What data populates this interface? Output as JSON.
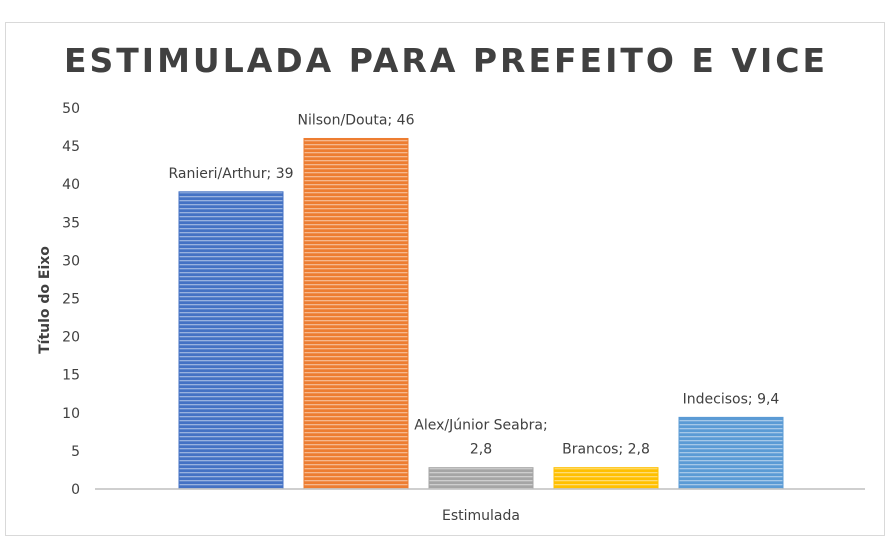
{
  "chart_data": {
    "type": "bar",
    "title": "ESTIMULADA PARA PREFEITO E VICE",
    "xlabel": "Estimulada",
    "ylabel": "Título do Eixo",
    "ylim": [
      0,
      50
    ],
    "yticks": [
      "0",
      "5",
      "10",
      "15",
      "20",
      "25",
      "30",
      "35",
      "40",
      "45",
      "50"
    ],
    "grid": false,
    "legend": "none",
    "series": [
      {
        "name": "Ranieri/Arthur",
        "value": 39,
        "label": "Ranieri/Arthur; 39",
        "color": "#4472C4"
      },
      {
        "name": "Nilson/Douta",
        "value": 46,
        "label": "Nilson/Douta; 46",
        "color": "#ED7D31"
      },
      {
        "name": "Alex/Júnior Seabra",
        "value": 2.8,
        "label": [
          "Alex/Júnior Seabra;",
          "2,8"
        ],
        "color": "#A5A5A5"
      },
      {
        "name": "Brancos",
        "value": 2.8,
        "label": "Brancos; 2,8",
        "color": "#FFC000"
      },
      {
        "name": "Indecisos",
        "value": 9.4,
        "label": "Indecisos; 9,4",
        "color": "#5B9BD5"
      }
    ]
  }
}
